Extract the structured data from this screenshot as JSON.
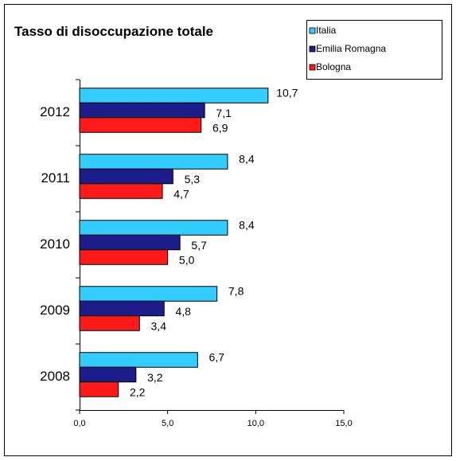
{
  "chart_data": {
    "type": "bar",
    "orientation": "horizontal",
    "title": "Tasso di disoccupazione totale",
    "categories": [
      "2012",
      "2011",
      "2010",
      "2009",
      "2008"
    ],
    "series": [
      {
        "name": "Italia",
        "color": "#33ccff",
        "values": [
          10.7,
          8.4,
          8.4,
          7.8,
          6.7
        ],
        "value_labels": [
          "10,7",
          "8,4",
          "8,4",
          "7,8",
          "6,7"
        ]
      },
      {
        "name": "Emilia Romagna",
        "color": "#1c1c8a",
        "values": [
          7.1,
          5.3,
          5.7,
          4.8,
          3.2
        ],
        "value_labels": [
          "7,1",
          "5,3",
          "5,7",
          "4,8",
          "3,2"
        ]
      },
      {
        "name": "Bologna",
        "color": "#ff1a1a",
        "values": [
          6.9,
          4.7,
          5.0,
          3.4,
          2.2
        ],
        "value_labels": [
          "6,9",
          "4,7",
          "5,0",
          "3,4",
          "2,2"
        ]
      }
    ],
    "xlim": [
      0,
      15
    ],
    "xticks": [
      {
        "value": 0,
        "label": "0,0"
      },
      {
        "value": 5,
        "label": "5,0"
      },
      {
        "value": 10,
        "label": "10,0"
      },
      {
        "value": 15,
        "label": "15,0"
      }
    ],
    "legend": "top-right"
  }
}
